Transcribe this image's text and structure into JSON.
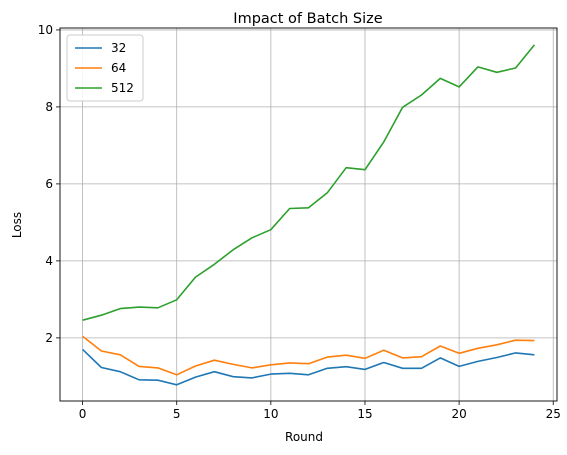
{
  "chart_data": {
    "type": "line",
    "title": "Impact of Batch Size",
    "xlabel": "Round",
    "ylabel": "Loss",
    "xlim": [
      -1.2,
      25.2
    ],
    "ylim": [
      0.36,
      10.05
    ],
    "x_ticks": [
      0,
      5,
      10,
      15,
      20,
      25
    ],
    "y_ticks": [
      2,
      4,
      6,
      8,
      10
    ],
    "grid": true,
    "legend_position": "top-left",
    "x": [
      0,
      1,
      2,
      3,
      4,
      5,
      6,
      7,
      8,
      9,
      10,
      11,
      12,
      13,
      14,
      15,
      16,
      17,
      18,
      19,
      20,
      21,
      22,
      23,
      24
    ],
    "series": [
      {
        "name": "32",
        "color": "#1f77b4",
        "values": [
          1.7,
          1.23,
          1.12,
          0.91,
          0.9,
          0.78,
          0.98,
          1.12,
          0.99,
          0.96,
          1.06,
          1.08,
          1.04,
          1.21,
          1.25,
          1.18,
          1.36,
          1.21,
          1.21,
          1.48,
          1.26,
          1.39,
          1.49,
          1.61,
          1.56
        ]
      },
      {
        "name": "64",
        "color": "#ff7f0e",
        "values": [
          2.04,
          1.66,
          1.56,
          1.26,
          1.22,
          1.04,
          1.27,
          1.42,
          1.31,
          1.22,
          1.3,
          1.35,
          1.33,
          1.5,
          1.55,
          1.47,
          1.68,
          1.48,
          1.51,
          1.79,
          1.6,
          1.73,
          1.82,
          1.94,
          1.93
        ]
      },
      {
        "name": "512",
        "color": "#2ca02c",
        "values": [
          2.46,
          2.59,
          2.76,
          2.8,
          2.78,
          2.99,
          3.58,
          3.91,
          4.29,
          4.6,
          4.81,
          5.36,
          5.38,
          5.77,
          6.42,
          6.37,
          7.09,
          7.99,
          8.31,
          8.74,
          8.52,
          9.04,
          8.9,
          9.01,
          9.61
        ]
      }
    ]
  }
}
